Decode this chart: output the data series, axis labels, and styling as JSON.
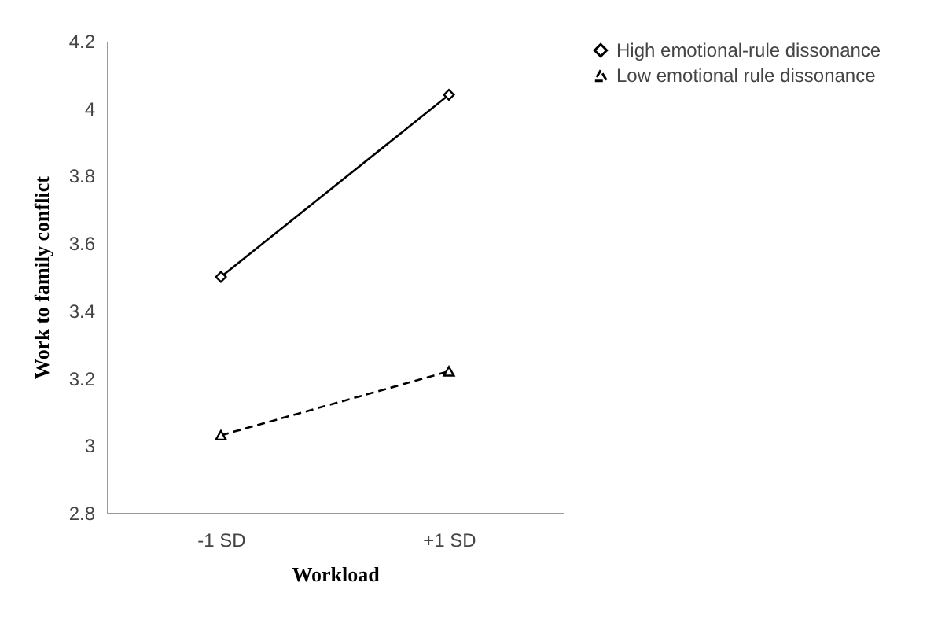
{
  "chart_data": {
    "type": "line",
    "xlabel": "Workload",
    "ylabel": "Work to family conflict",
    "categories": [
      "-1 SD",
      "+1 SD"
    ],
    "series": [
      {
        "name": "High emotional-rule dissonance",
        "color": "#000000",
        "values": [
          3.5,
          4.04
        ],
        "marker": "diamond",
        "line_style": "solid"
      },
      {
        "name": "Low emotional rule dissonance",
        "color": "#000000",
        "values": [
          3.03,
          3.22
        ],
        "marker": "triangle",
        "line_style": "dashed"
      }
    ],
    "ylim": [
      2.8,
      4.2
    ],
    "yticks": [
      2.8,
      3,
      3.2,
      3.4,
      3.6,
      3.8,
      4,
      4.2
    ],
    "grid": false,
    "legend": "right"
  }
}
